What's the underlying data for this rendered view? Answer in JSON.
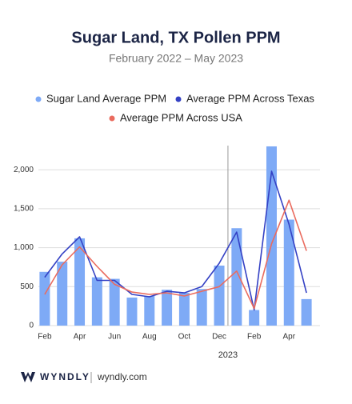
{
  "chart_data": {
    "type": "bar",
    "title": "Sugar Land, TX Pollen PPM",
    "subtitle": "February 2022 – May 2023",
    "categories": [
      "Feb",
      null,
      "Apr",
      null,
      "Jun",
      null,
      "Aug",
      null,
      "Oct",
      null,
      "Dec",
      null,
      "Feb",
      null,
      "Apr",
      null
    ],
    "series": [
      {
        "name": "Sugar Land Average PPM",
        "type": "bar",
        "color": "#7eaaf6",
        "values": [
          690,
          820,
          1120,
          620,
          600,
          360,
          380,
          460,
          420,
          470,
          770,
          1250,
          200,
          2300,
          1360,
          340
        ]
      },
      {
        "name": "Average PPM Across Texas",
        "type": "line",
        "color": "#3441c4",
        "values": [
          620,
          920,
          1140,
          580,
          580,
          400,
          370,
          440,
          420,
          500,
          800,
          1200,
          200,
          1980,
          1300,
          420
        ]
      },
      {
        "name": "Average PPM Across USA",
        "type": "line",
        "color": "#ea6b5e",
        "values": [
          400,
          780,
          1010,
          760,
          530,
          430,
          400,
          420,
          380,
          440,
          500,
          700,
          220,
          1050,
          1610,
          960
        ]
      }
    ],
    "ylim": [
      0,
      2310
    ],
    "yticks": [
      0,
      500,
      {
        "value": 1000,
        "label": "1,000"
      },
      {
        "value": 1500,
        "label": "1,500"
      },
      {
        "value": 2000,
        "label": "2,000"
      }
    ],
    "grid": true,
    "annotation": "2023"
  },
  "footer": {
    "brand": "WYNDLY",
    "url": "wyndly.com"
  }
}
